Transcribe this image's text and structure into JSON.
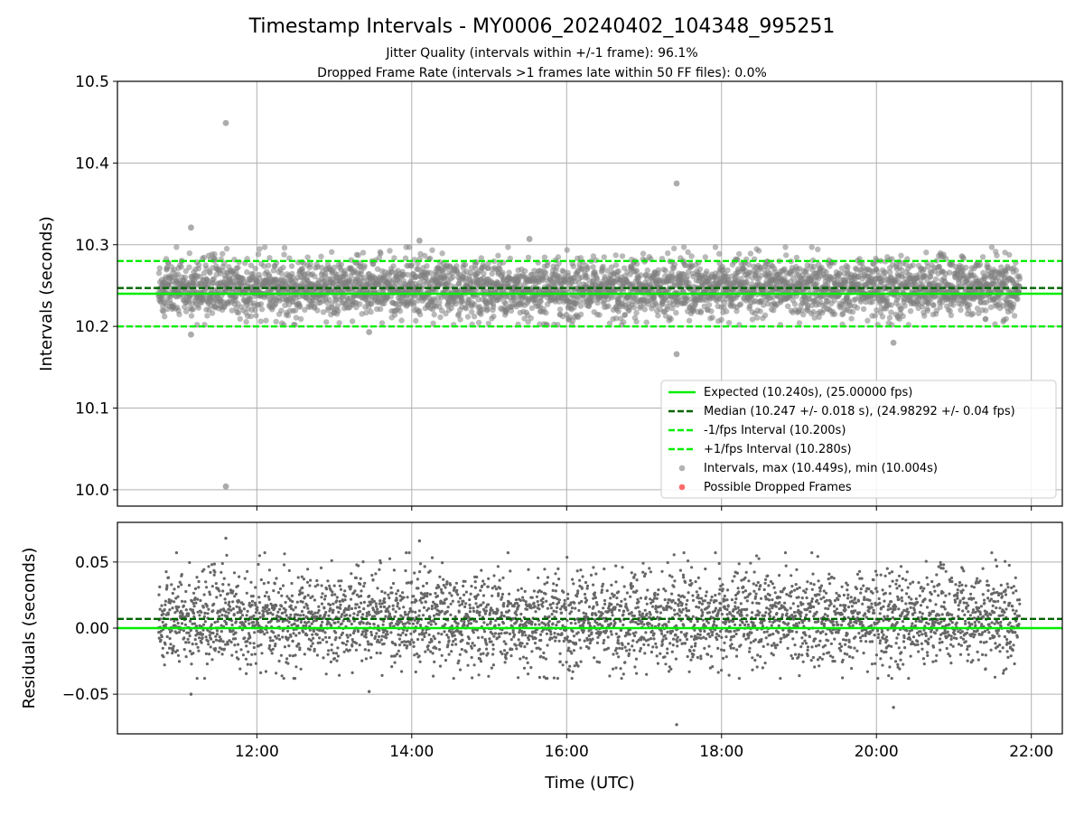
{
  "chart_data": {
    "type": "scatter",
    "title": "Timestamp Intervals - MY0006_20240402_104348_995251",
    "subtitle_lines": [
      "Jitter Quality (intervals within +/-1 frame): 96.1%",
      "Dropped Frame Rate (intervals >1 frames late within 50 FF files): 0.0%"
    ],
    "xlabel": "Time (UTC)",
    "x_ticks": [
      "12:00",
      "14:00",
      "16:00",
      "18:00",
      "20:00",
      "22:00"
    ],
    "x_tick_hours": [
      12,
      14,
      16,
      18,
      20,
      22
    ],
    "x_range_hours": [
      10.2,
      22.4
    ],
    "x_data_range_hours": [
      10.73,
      21.85
    ],
    "grid": true,
    "top_panel": {
      "ylabel": "Intervals (seconds)",
      "ylim": [
        9.98,
        10.5
      ],
      "y_ticks": [
        "10.0",
        "10.1",
        "10.2",
        "10.3",
        "10.4",
        "10.5"
      ],
      "y_tick_values": [
        10.0,
        10.1,
        10.2,
        10.3,
        10.4,
        10.5
      ],
      "reference_lines": [
        {
          "name": "Expected (10.240s), (25.00000 fps)",
          "value": 10.24,
          "color": "#00ee00",
          "style": "solid"
        },
        {
          "name": "Median (10.247 +/- 0.018 s), (24.98292 +/- 0.04 fps)",
          "value": 10.247,
          "color": "#006400",
          "style": "dashed"
        },
        {
          "name": "-1/fps Interval (10.200s)",
          "value": 10.2,
          "color": "#00ee00",
          "style": "dashed"
        },
        {
          "name": "+1/fps Interval (10.280s)",
          "value": 10.28,
          "color": "#00ee00",
          "style": "dashed"
        }
      ],
      "series": [
        {
          "name": "Intervals, max (10.449s), min (10.004s)",
          "color": "#808080",
          "mean": 10.247,
          "std": 0.018,
          "count": 3900
        },
        {
          "name": "Possible Dropped Frames",
          "color": "#ff5a5a",
          "count": 0
        }
      ],
      "outliers": [
        {
          "x": 11.6,
          "y": 10.449
        },
        {
          "x": 11.6,
          "y": 10.004
        },
        {
          "x": 17.42,
          "y": 10.375
        },
        {
          "x": 17.42,
          "y": 10.166
        },
        {
          "x": 11.15,
          "y": 10.321
        },
        {
          "x": 20.22,
          "y": 10.18
        },
        {
          "x": 15.52,
          "y": 10.307
        },
        {
          "x": 14.1,
          "y": 10.305
        },
        {
          "x": 13.45,
          "y": 10.193
        },
        {
          "x": 11.15,
          "y": 10.19
        }
      ],
      "legend_position": "lower right"
    },
    "bottom_panel": {
      "ylabel": "Residuals (seconds)",
      "ylim": [
        -0.08,
        0.08
      ],
      "y_ticks": [
        "0.05",
        "0.00",
        "−0.05"
      ],
      "y_tick_values": [
        0.05,
        0.0,
        -0.05
      ],
      "reference_lines": [
        {
          "value": 0.007,
          "color": "#006400",
          "style": "dashed"
        },
        {
          "value": 0.0,
          "color": "#00ee00",
          "style": "solid"
        }
      ],
      "series": [
        {
          "name": "Residuals",
          "color": "#666666",
          "mean": 0.007,
          "std": 0.018,
          "count": 3900
        }
      ],
      "outliers": [
        {
          "x": 11.6,
          "y": 0.068
        },
        {
          "x": 17.42,
          "y": -0.073
        },
        {
          "x": 20.22,
          "y": -0.06
        },
        {
          "x": 11.15,
          "y": -0.05
        },
        {
          "x": 13.45,
          "y": -0.048
        },
        {
          "x": 14.1,
          "y": 0.066
        }
      ]
    }
  }
}
